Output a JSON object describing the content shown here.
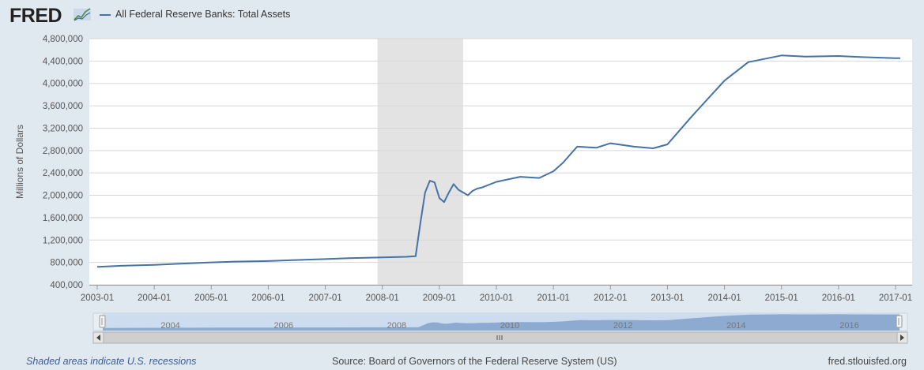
{
  "header": {
    "logo_text": "FRED",
    "logo_mark_icon": "fred-line-chart-icon",
    "series_name": "All Federal Reserve Banks: Total Assets"
  },
  "footer": {
    "recession_note": "Shaded areas indicate U.S. recessions",
    "source": "Source: Board of Governors of the Federal Reserve System (US)",
    "site": "fred.stlouisfed.org"
  },
  "colors": {
    "line": "#4572a7",
    "recession_shade": "#e3e3e3",
    "navigator_fill": "#7d9ec8",
    "navigator_selected": "#cddcef",
    "page_bg": "#e1e9f0"
  },
  "chart_data": {
    "type": "line",
    "title": "",
    "xlabel": "",
    "ylabel": "Millions of Dollars",
    "ylim": [
      400000,
      4800000
    ],
    "xlim": [
      "2003-01",
      "2017-02"
    ],
    "yticks": [
      400000,
      800000,
      1200000,
      1600000,
      2000000,
      2400000,
      2800000,
      3200000,
      3600000,
      4000000,
      4400000,
      4800000
    ],
    "ytick_labels": [
      "400,000",
      "800,000",
      "1,200,000",
      "1,600,000",
      "2,000,000",
      "2,400,000",
      "2,800,000",
      "3,200,000",
      "3,600,000",
      "4,000,000",
      "4,400,000",
      "4,800,000"
    ],
    "xticks": [
      "2003-01",
      "2004-01",
      "2005-01",
      "2006-01",
      "2007-01",
      "2008-01",
      "2009-01",
      "2010-01",
      "2011-01",
      "2012-01",
      "2013-01",
      "2014-01",
      "2015-01",
      "2016-01",
      "2017-01"
    ],
    "grid": true,
    "legend": "top-left",
    "recessions": [
      {
        "start": "2007-12",
        "end": "2009-06"
      }
    ],
    "navigator": {
      "labels": [
        "2004",
        "2006",
        "2008",
        "2010",
        "2012",
        "2014",
        "2016"
      ],
      "scroll_icon": "scrollbar-grip-icon"
    },
    "series": [
      {
        "name": "All Federal Reserve Banks: Total Assets",
        "x": [
          "2003-01",
          "2003-06",
          "2004-01",
          "2004-06",
          "2005-01",
          "2005-06",
          "2006-01",
          "2006-06",
          "2007-01",
          "2007-06",
          "2008-01",
          "2008-06",
          "2008-08",
          "2008-09",
          "2008-10",
          "2008-11",
          "2008-12",
          "2009-01",
          "2009-02",
          "2009-03",
          "2009-04",
          "2009-05",
          "2009-06",
          "2009-07",
          "2009-08",
          "2009-09",
          "2009-10",
          "2010-01",
          "2010-06",
          "2010-10",
          "2011-01",
          "2011-03",
          "2011-06",
          "2011-10",
          "2012-01",
          "2012-06",
          "2012-10",
          "2013-01",
          "2013-06",
          "2014-01",
          "2014-06",
          "2015-01",
          "2015-06",
          "2016-01",
          "2016-06",
          "2017-01",
          "2017-02"
        ],
        "values": [
          720000,
          740000,
          755000,
          775000,
          800000,
          815000,
          825000,
          840000,
          860000,
          875000,
          890000,
          900000,
          910000,
          1500000,
          2050000,
          2260000,
          2230000,
          1950000,
          1880000,
          2050000,
          2200000,
          2100000,
          2050000,
          2000000,
          2080000,
          2120000,
          2140000,
          2240000,
          2330000,
          2310000,
          2430000,
          2580000,
          2870000,
          2850000,
          2930000,
          2870000,
          2840000,
          2910000,
          3400000,
          4050000,
          4380000,
          4500000,
          4480000,
          4490000,
          4470000,
          4450000,
          4450000
        ]
      }
    ]
  }
}
